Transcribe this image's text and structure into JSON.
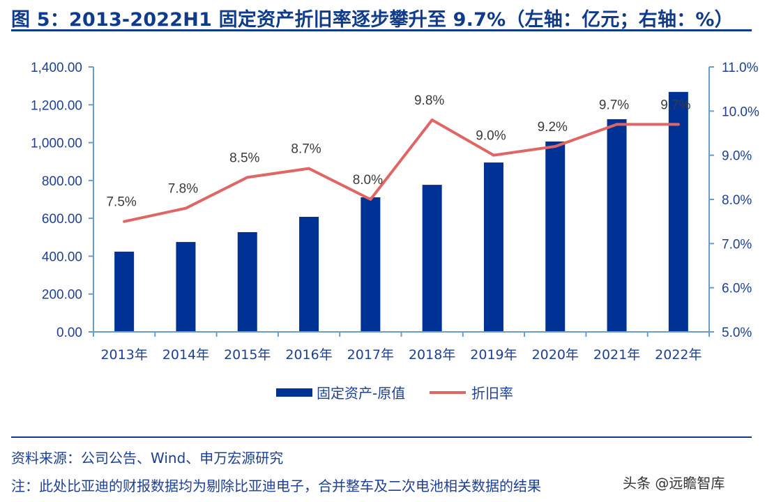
{
  "title": "图 5：2013-2022H1 固定资产折旧率逐步攀升至 9.7%（左轴：亿元；右轴：%）",
  "source": "资料来源：公司公告、Wind、申万宏源研究",
  "note": "注：此处比亚迪的财报数据均为剔除比亚迪电子，合并整车及二次电池相关数据的结果",
  "watermark": "头条 @远瞻智库",
  "colors": {
    "bar": "#003296",
    "line": "#e06666",
    "axis": "#6a9cc9",
    "title": "#0f3b8c"
  },
  "chart_data": {
    "type": "bar",
    "title": "2013-2022H1 固定资产折旧率逐步攀升至 9.7%",
    "categories": [
      "2013年",
      "2014年",
      "2015年",
      "2016年",
      "2017年",
      "2018年",
      "2019年",
      "2020年",
      "2021年",
      "2022年"
    ],
    "series": [
      {
        "name": "固定资产-原值",
        "type": "bar",
        "axis": "left",
        "unit": "亿元",
        "values": [
          424,
          475,
          527,
          608,
          711,
          777,
          895,
          1006,
          1124,
          1268
        ]
      },
      {
        "name": "折旧率",
        "type": "line",
        "axis": "right",
        "unit": "%",
        "values": [
          7.5,
          7.8,
          8.5,
          8.7,
          8.0,
          9.8,
          9.0,
          9.2,
          9.7,
          9.7
        ],
        "labels": [
          "7.5%",
          "7.8%",
          "8.5%",
          "8.7%",
          "8.0%",
          "9.8%",
          "9.0%",
          "9.2%",
          "9.7%",
          "9.7%"
        ]
      }
    ],
    "y_left": {
      "label": "亿元",
      "ylim": [
        0,
        1400
      ],
      "ticks": [
        0,
        200,
        400,
        600,
        800,
        1000,
        1200,
        1400
      ],
      "tick_labels": [
        "0.00",
        "200.00",
        "400.00",
        "600.00",
        "800.00",
        "1,000.00",
        "1,200.00",
        "1,400.00"
      ]
    },
    "y_right": {
      "label": "%",
      "ylim": [
        5.0,
        11.0
      ],
      "ticks": [
        5,
        6,
        7,
        8,
        9,
        10,
        11
      ],
      "tick_labels": [
        "5.0%",
        "6.0%",
        "7.0%",
        "8.0%",
        "9.0%",
        "10.0%",
        "11.0%"
      ]
    },
    "xlabel": "",
    "grid": false,
    "legend": {
      "position": "bottom",
      "entries": [
        "固定资产-原值",
        "折旧率"
      ]
    }
  }
}
